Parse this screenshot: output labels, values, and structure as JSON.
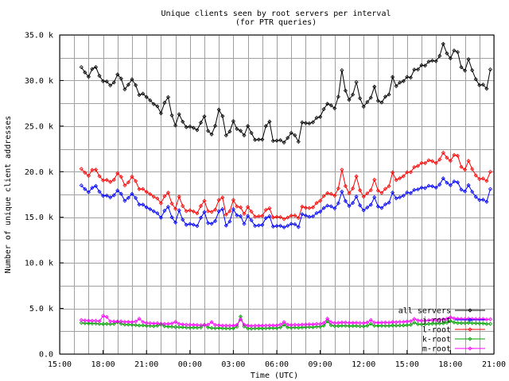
{
  "chart_data": {
    "type": "line",
    "title": "Unique clients seen by root servers per interval",
    "subtitle": "(for PTR queries)",
    "xlabel": "Time (UTC)",
    "ylabel": "Number of unique client addresses",
    "x_ticks": [
      "15:00",
      "18:00",
      "21:00",
      "00:00",
      "03:00",
      "06:00",
      "09:00",
      "12:00",
      "15:00",
      "18:00",
      "21:00"
    ],
    "y_ticks": [
      "0.0",
      "5.0 k",
      "10.0 k",
      "15.0 k",
      "20.0 k",
      "25.0 k",
      "30.0 k",
      "35.0 k"
    ],
    "xlim_hours": [
      15,
      45
    ],
    "ylim": [
      0,
      35000
    ],
    "grid": true,
    "legend_position": "bottom-right",
    "series": [
      {
        "name": "all servers",
        "color": "#000000",
        "anchors": [
          [
            16.5,
            31300
          ],
          [
            17.0,
            30500
          ],
          [
            17.5,
            31200
          ],
          [
            18.0,
            30000
          ],
          [
            18.5,
            29500
          ],
          [
            19.0,
            30200
          ],
          [
            19.5,
            29200
          ],
          [
            20.0,
            29800
          ],
          [
            20.5,
            28600
          ],
          [
            21.0,
            28200
          ],
          [
            21.5,
            27500
          ],
          [
            22.0,
            26500
          ],
          [
            22.5,
            27000
          ],
          [
            23.0,
            25200
          ],
          [
            23.5,
            24900
          ],
          [
            24.0,
            25000
          ],
          [
            24.5,
            24500
          ],
          [
            25.0,
            24800
          ],
          [
            25.5,
            24100
          ],
          [
            26.0,
            26200
          ],
          [
            26.5,
            24000
          ],
          [
            27.0,
            24600
          ],
          [
            27.5,
            23700
          ],
          [
            28.0,
            24200
          ],
          [
            28.5,
            23400
          ],
          [
            29.0,
            23600
          ],
          [
            29.5,
            23300
          ],
          [
            30.0,
            23500
          ],
          [
            30.5,
            23200
          ],
          [
            31.0,
            24300
          ],
          [
            31.5,
            23400
          ],
          [
            32.0,
            24800
          ],
          [
            32.5,
            25600
          ],
          [
            33.0,
            26000
          ],
          [
            33.5,
            27200
          ],
          [
            34.0,
            27000
          ],
          [
            34.5,
            28800
          ],
          [
            35.0,
            28000
          ],
          [
            35.5,
            28600
          ],
          [
            36.0,
            27200
          ],
          [
            36.5,
            28000
          ],
          [
            37.0,
            26900
          ],
          [
            37.5,
            28200
          ],
          [
            38.0,
            28500
          ],
          [
            38.5,
            29800
          ],
          [
            39.0,
            30200
          ],
          [
            39.5,
            30500
          ],
          [
            40.0,
            31600
          ],
          [
            40.5,
            32000
          ],
          [
            41.0,
            32200
          ],
          [
            41.5,
            33000
          ],
          [
            42.0,
            32600
          ],
          [
            42.5,
            31800
          ],
          [
            43.0,
            31200
          ],
          [
            43.5,
            30800
          ],
          [
            44.0,
            29500
          ],
          [
            44.5,
            29300
          ],
          [
            44.8,
            31500
          ]
        ],
        "spikes": [
          [
            17.3,
            31400
          ],
          [
            19.1,
            30700
          ],
          [
            20.1,
            30000
          ],
          [
            22.4,
            28600
          ],
          [
            23.3,
            26500
          ],
          [
            24.9,
            26500
          ],
          [
            26.2,
            26600
          ],
          [
            27.0,
            25400
          ],
          [
            27.4,
            25000
          ],
          [
            28.1,
            25200
          ],
          [
            29.4,
            26500
          ],
          [
            31.8,
            25800
          ],
          [
            33.4,
            27500
          ],
          [
            34.5,
            31100
          ],
          [
            35.5,
            29700
          ],
          [
            36.8,
            29800
          ],
          [
            38.0,
            30200
          ],
          [
            39.5,
            31200
          ],
          [
            41.5,
            33900
          ],
          [
            42.4,
            33900
          ],
          [
            43.3,
            32300
          ]
        ]
      },
      {
        "name": "j-root",
        "color": "#0000ff",
        "anchors": [
          [
            16.5,
            18400
          ],
          [
            17.0,
            17800
          ],
          [
            17.5,
            18300
          ],
          [
            18.0,
            17400
          ],
          [
            18.5,
            17200
          ],
          [
            19.0,
            17700
          ],
          [
            19.5,
            16900
          ],
          [
            20.0,
            17300
          ],
          [
            20.5,
            16500
          ],
          [
            21.0,
            16100
          ],
          [
            21.5,
            15700
          ],
          [
            22.0,
            15000
          ],
          [
            22.5,
            15400
          ],
          [
            23.0,
            14500
          ],
          [
            23.5,
            14100
          ],
          [
            24.0,
            14300
          ],
          [
            24.5,
            14000
          ],
          [
            25.0,
            14400
          ],
          [
            25.5,
            14300
          ],
          [
            26.0,
            15000
          ],
          [
            26.5,
            14100
          ],
          [
            27.0,
            14600
          ],
          [
            27.5,
            14100
          ],
          [
            28.0,
            14400
          ],
          [
            28.5,
            14000
          ],
          [
            29.0,
            14200
          ],
          [
            29.5,
            13900
          ],
          [
            30.0,
            14100
          ],
          [
            30.5,
            13900
          ],
          [
            31.0,
            14300
          ],
          [
            31.5,
            14000
          ],
          [
            32.0,
            14800
          ],
          [
            32.5,
            15200
          ],
          [
            33.0,
            15600
          ],
          [
            33.5,
            16200
          ],
          [
            34.0,
            16000
          ],
          [
            34.5,
            16800
          ],
          [
            35.0,
            16300
          ],
          [
            35.5,
            16700
          ],
          [
            36.0,
            15800
          ],
          [
            36.5,
            16300
          ],
          [
            37.0,
            15600
          ],
          [
            37.5,
            16400
          ],
          [
            38.0,
            16700
          ],
          [
            38.5,
            17200
          ],
          [
            39.0,
            17600
          ],
          [
            39.5,
            17800
          ],
          [
            40.0,
            18200
          ],
          [
            40.5,
            18400
          ],
          [
            41.0,
            18300
          ],
          [
            41.5,
            18800
          ],
          [
            42.0,
            18600
          ],
          [
            42.5,
            18200
          ],
          [
            43.0,
            17900
          ],
          [
            43.5,
            17600
          ],
          [
            44.0,
            16900
          ],
          [
            44.5,
            16800
          ],
          [
            44.8,
            18300
          ]
        ],
        "spikes": [
          [
            17.3,
            18300
          ],
          [
            19.1,
            17900
          ],
          [
            20.1,
            17500
          ],
          [
            22.4,
            16400
          ],
          [
            23.3,
            16000
          ],
          [
            24.9,
            16000
          ],
          [
            26.2,
            16300
          ],
          [
            27.0,
            15800
          ],
          [
            27.4,
            15700
          ],
          [
            28.1,
            15400
          ],
          [
            29.4,
            15700
          ],
          [
            31.8,
            15600
          ],
          [
            33.4,
            16300
          ],
          [
            34.5,
            17800
          ],
          [
            35.5,
            17200
          ],
          [
            36.8,
            17500
          ],
          [
            38.0,
            17600
          ],
          [
            39.5,
            18000
          ],
          [
            41.5,
            19200
          ],
          [
            42.4,
            19200
          ],
          [
            43.3,
            18500
          ]
        ]
      },
      {
        "name": "l-root",
        "color": "#ff0000",
        "anchors": [
          [
            16.5,
            20200
          ],
          [
            17.0,
            19600
          ],
          [
            17.5,
            20000
          ],
          [
            18.0,
            19100
          ],
          [
            18.5,
            18900
          ],
          [
            19.0,
            19400
          ],
          [
            19.5,
            18600
          ],
          [
            20.0,
            19000
          ],
          [
            20.5,
            18200
          ],
          [
            21.0,
            17800
          ],
          [
            21.5,
            17300
          ],
          [
            22.0,
            16600
          ],
          [
            22.5,
            16900
          ],
          [
            23.0,
            16000
          ],
          [
            23.5,
            15600
          ],
          [
            24.0,
            15800
          ],
          [
            24.5,
            15400
          ],
          [
            25.0,
            15700
          ],
          [
            25.5,
            15600
          ],
          [
            26.0,
            16200
          ],
          [
            26.5,
            15300
          ],
          [
            27.0,
            15700
          ],
          [
            27.5,
            15200
          ],
          [
            28.0,
            15500
          ],
          [
            28.5,
            15000
          ],
          [
            29.0,
            15200
          ],
          [
            29.5,
            14900
          ],
          [
            30.0,
            15100
          ],
          [
            30.5,
            14800
          ],
          [
            31.0,
            15200
          ],
          [
            31.5,
            15000
          ],
          [
            32.0,
            15700
          ],
          [
            32.5,
            16200
          ],
          [
            33.0,
            16800
          ],
          [
            33.5,
            17500
          ],
          [
            34.0,
            17400
          ],
          [
            34.5,
            18400
          ],
          [
            35.0,
            17700
          ],
          [
            35.5,
            18300
          ],
          [
            36.0,
            17300
          ],
          [
            36.5,
            17900
          ],
          [
            37.0,
            17200
          ],
          [
            37.5,
            18100
          ],
          [
            38.0,
            18500
          ],
          [
            38.5,
            19300
          ],
          [
            39.0,
            19800
          ],
          [
            39.5,
            20200
          ],
          [
            40.0,
            20900
          ],
          [
            40.5,
            21200
          ],
          [
            41.0,
            21000
          ],
          [
            41.5,
            21600
          ],
          [
            42.0,
            21300
          ],
          [
            42.5,
            20800
          ],
          [
            43.0,
            20300
          ],
          [
            43.5,
            20000
          ],
          [
            44.0,
            19200
          ],
          [
            44.5,
            19100
          ],
          [
            44.8,
            20100
          ]
        ],
        "spikes": [
          [
            17.3,
            20300
          ],
          [
            19.1,
            19900
          ],
          [
            20.1,
            19500
          ],
          [
            22.4,
            18000
          ],
          [
            23.3,
            17500
          ],
          [
            24.9,
            17200
          ],
          [
            26.2,
            17600
          ],
          [
            27.0,
            16800
          ],
          [
            27.4,
            16600
          ],
          [
            28.1,
            16300
          ],
          [
            29.4,
            16500
          ],
          [
            31.8,
            16400
          ],
          [
            33.4,
            17700
          ],
          [
            34.5,
            20200
          ],
          [
            35.5,
            19400
          ],
          [
            36.8,
            19500
          ],
          [
            38.0,
            19800
          ],
          [
            39.5,
            20500
          ],
          [
            41.5,
            22000
          ],
          [
            42.4,
            22300
          ],
          [
            43.3,
            21200
          ]
        ]
      },
      {
        "name": "k-root",
        "color": "#00a000",
        "anchors": [
          [
            16.5,
            3400
          ],
          [
            18.0,
            3300
          ],
          [
            19.5,
            3250
          ],
          [
            21.0,
            3100
          ],
          [
            22.5,
            3000
          ],
          [
            24.0,
            2900
          ],
          [
            25.5,
            2850
          ],
          [
            27.0,
            2800
          ],
          [
            28.5,
            2800
          ],
          [
            30.0,
            2850
          ],
          [
            31.5,
            2900
          ],
          [
            33.0,
            3000
          ],
          [
            34.5,
            3100
          ],
          [
            36.0,
            3050
          ],
          [
            37.5,
            3100
          ],
          [
            39.0,
            3150
          ],
          [
            40.5,
            3300
          ],
          [
            42.0,
            3400
          ],
          [
            43.5,
            3400
          ],
          [
            44.8,
            3300
          ]
        ],
        "spikes": [
          [
            19.0,
            3500
          ],
          [
            22.0,
            3250
          ],
          [
            25.0,
            3200
          ],
          [
            27.5,
            4100
          ],
          [
            30.5,
            3200
          ],
          [
            33.5,
            3600
          ],
          [
            36.5,
            3300
          ],
          [
            39.5,
            3450
          ],
          [
            42.0,
            3650
          ]
        ]
      },
      {
        "name": "m-root",
        "color": "#ff00ff",
        "anchors": [
          [
            16.5,
            3700
          ],
          [
            18.0,
            3600
          ],
          [
            19.5,
            3550
          ],
          [
            21.0,
            3400
          ],
          [
            22.5,
            3300
          ],
          [
            24.0,
            3200
          ],
          [
            25.5,
            3150
          ],
          [
            27.0,
            3100
          ],
          [
            28.5,
            3100
          ],
          [
            30.0,
            3150
          ],
          [
            31.5,
            3200
          ],
          [
            33.0,
            3300
          ],
          [
            34.5,
            3450
          ],
          [
            36.0,
            3400
          ],
          [
            37.5,
            3450
          ],
          [
            39.0,
            3550
          ],
          [
            40.5,
            3700
          ],
          [
            42.0,
            3850
          ],
          [
            43.5,
            3850
          ],
          [
            44.8,
            3800
          ]
        ],
        "spikes": [
          [
            18.1,
            4500
          ],
          [
            20.5,
            3900
          ],
          [
            23.0,
            3550
          ],
          [
            25.5,
            3500
          ],
          [
            27.5,
            3800
          ],
          [
            30.5,
            3500
          ],
          [
            33.5,
            3900
          ],
          [
            36.5,
            3700
          ],
          [
            39.5,
            3850
          ],
          [
            42.0,
            4050
          ]
        ]
      }
    ]
  }
}
